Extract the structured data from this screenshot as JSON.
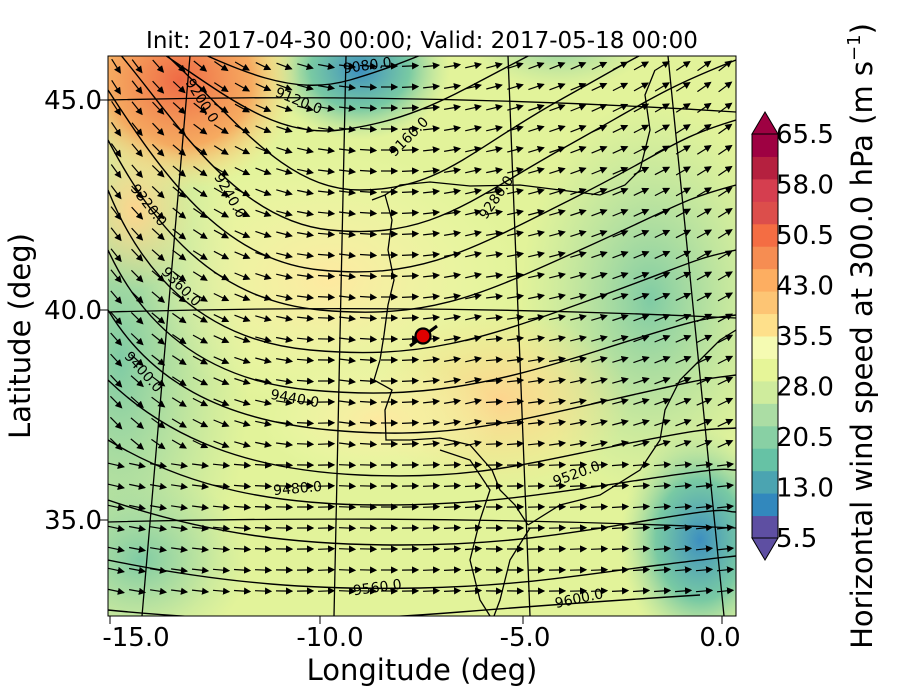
{
  "title": "Init: 2017-04-30 00:00; Valid: 2017-05-18 00:00",
  "xlabel": "Longitude (deg)",
  "ylabel": "Latitude (deg)",
  "x_ticks": [
    "-15.0",
    "-10.0",
    "-5.0",
    "0.0"
  ],
  "y_ticks": [
    "45.0",
    "40.0",
    "35.0"
  ],
  "colorbar": {
    "label": "Horizontal wind speed at 300.0 hPa (m s",
    "label_exponent": "−1",
    "label_close": ")",
    "ticks": [
      "65.5",
      "58.0",
      "50.5",
      "43.0",
      "35.5",
      "28.0",
      "20.5",
      "13.0",
      "5.5"
    ],
    "colors": [
      "#5e4fa2",
      "#3288bd",
      "#4ba4b1",
      "#66c2a5",
      "#88d0a4",
      "#abdda4",
      "#cfec9d",
      "#e6f598",
      "#f5fbb2",
      "#fee08b",
      "#fdc574",
      "#fdae61",
      "#f68d52",
      "#f46d43",
      "#dc4e4b",
      "#d53e4f",
      "#b5203f",
      "#9e0142"
    ]
  },
  "contours": [
    {
      "label": "9080.0"
    },
    {
      "label": "9120.0"
    },
    {
      "label": "9160.0"
    },
    {
      "label": "9200.0"
    },
    {
      "label": "9240.0"
    },
    {
      "label": "9280.0"
    },
    {
      "label": "9320.0"
    },
    {
      "label": "9360.0"
    },
    {
      "label": "9400.0"
    },
    {
      "label": "9440.0"
    },
    {
      "label": "9480.0"
    },
    {
      "label": "9520.0"
    },
    {
      "label": "9560.0"
    },
    {
      "label": "9600.0"
    }
  ],
  "marker": {
    "lon": -7.6,
    "lat": 39.3,
    "color": "#e00000"
  },
  "chart_data": {
    "type": "heatmap",
    "title": "Init: 2017-04-30 00:00; Valid: 2017-05-18 00:00",
    "xlabel": "Longitude (deg)",
    "ylabel": "Latitude (deg)",
    "xlim": [
      -16,
      0.3
    ],
    "ylim": [
      32.7,
      46
    ],
    "variable": "Horizontal wind speed at 300.0 hPa",
    "unit": "m s-1",
    "colorbar_range": [
      5.5,
      65.5
    ],
    "contour_levels": [
      9080,
      9120,
      9160,
      9200,
      9240,
      9280,
      9320,
      9360,
      9400,
      9440,
      9480,
      9520,
      9560,
      9600
    ]
  }
}
